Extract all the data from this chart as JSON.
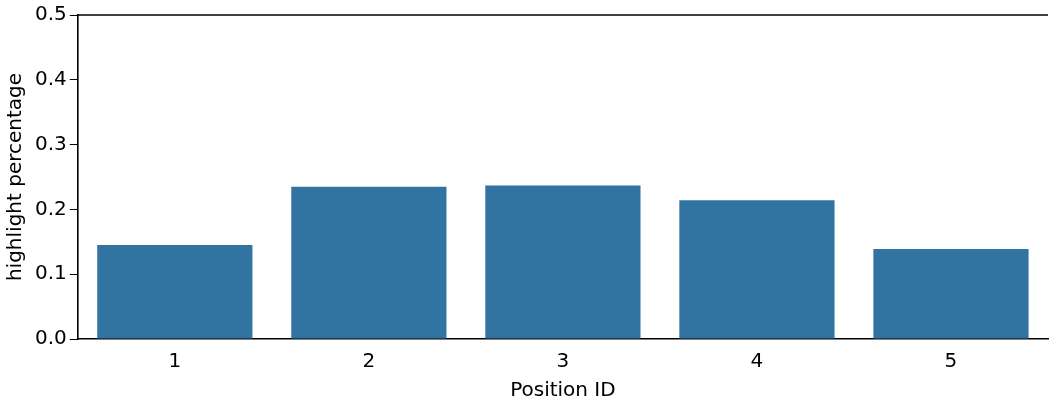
{
  "chart_data": {
    "type": "bar",
    "xlabel": "Position ID",
    "ylabel": "highlight percentage",
    "categories": [
      "1",
      "2",
      "3",
      "4",
      "5"
    ],
    "values": [
      0.145,
      0.235,
      0.237,
      0.214,
      0.139
    ],
    "color": "#3274a1",
    "ylim": [
      0,
      0.5
    ],
    "yticks": [
      {
        "value": 0,
        "label": "0.0"
      },
      0.1,
      0.2,
      0.3,
      0.4,
      0.5
    ],
    "grid": false,
    "legend": false
  }
}
